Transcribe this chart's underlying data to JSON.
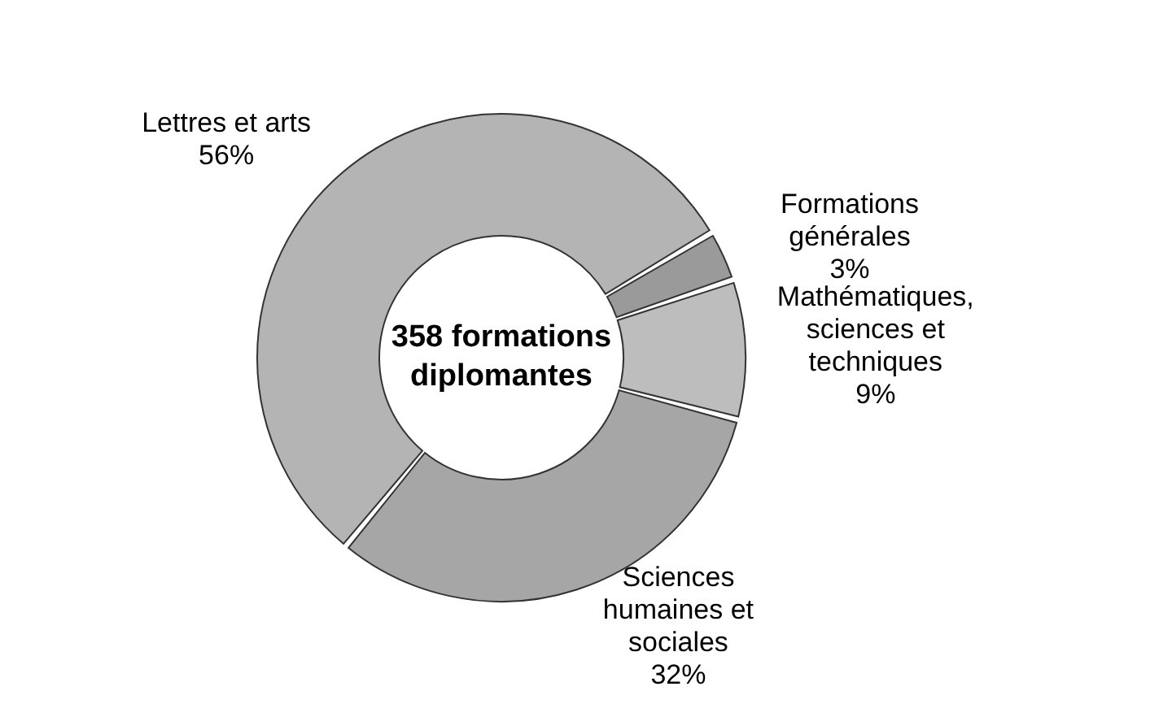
{
  "chart_data": {
    "type": "donut",
    "title": "358 formations diplomantes",
    "categories": [
      "Formations générales",
      "Mathématiques, sciences et techniques",
      "Sciences humaines et sociales",
      "Lettres et arts"
    ],
    "values": [
      3,
      9,
      32,
      56
    ],
    "colors": [
      "#9a9a9a",
      "#bdbdbd",
      "#a6a6a6",
      "#b4b4b4"
    ],
    "value_labels": [
      "3%",
      "9%",
      "32%",
      "56%"
    ]
  }
}
